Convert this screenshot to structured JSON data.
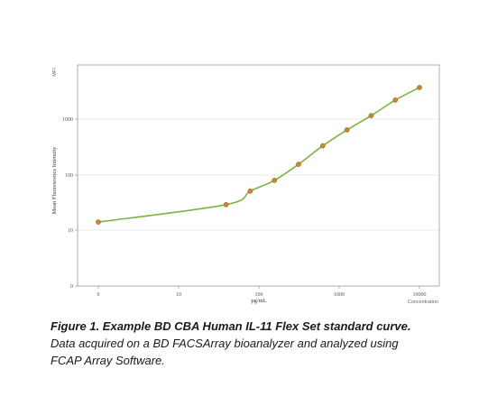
{
  "chart_data": {
    "type": "line",
    "y_axis_unit_label": "MFI",
    "xlabel": "pg/mL",
    "x_axis_note": "Concentration",
    "ylabel": "Mean Fluorescence Intensity",
    "x_scale": "log",
    "y_scale": "log",
    "x_tick_labels": [
      "0",
      "10",
      "100",
      "1000",
      "10000"
    ],
    "y_tick_labels": [
      "0",
      "10",
      "100",
      "1000"
    ],
    "grid": true,
    "series": [
      {
        "points": [
          {
            "x": 0,
            "y": 14
          },
          {
            "x": 39,
            "y": 29
          },
          {
            "x": 78,
            "y": 51
          },
          {
            "x": 156,
            "y": 80
          },
          {
            "x": 312,
            "y": 157
          },
          {
            "x": 625,
            "y": 340
          },
          {
            "x": 1250,
            "y": 660
          },
          {
            "x": 2500,
            "y": 1200
          },
          {
            "x": 5000,
            "y": 2300
          },
          {
            "x": 10000,
            "y": 3900
          }
        ]
      }
    ],
    "colors": {
      "curve": "#7cb342",
      "point": "#c68a2a",
      "point_stroke": "#8a5a14",
      "grid": "#e2e2e2",
      "frame": "#999999"
    }
  },
  "caption": {
    "bold_title": "Figure 1. Example BD CBA Human IL-11 Flex Set standard curve.",
    "text": " Data acquired on a BD FACSArray bioanalyzer and analyzed using FCAP Array Software."
  }
}
